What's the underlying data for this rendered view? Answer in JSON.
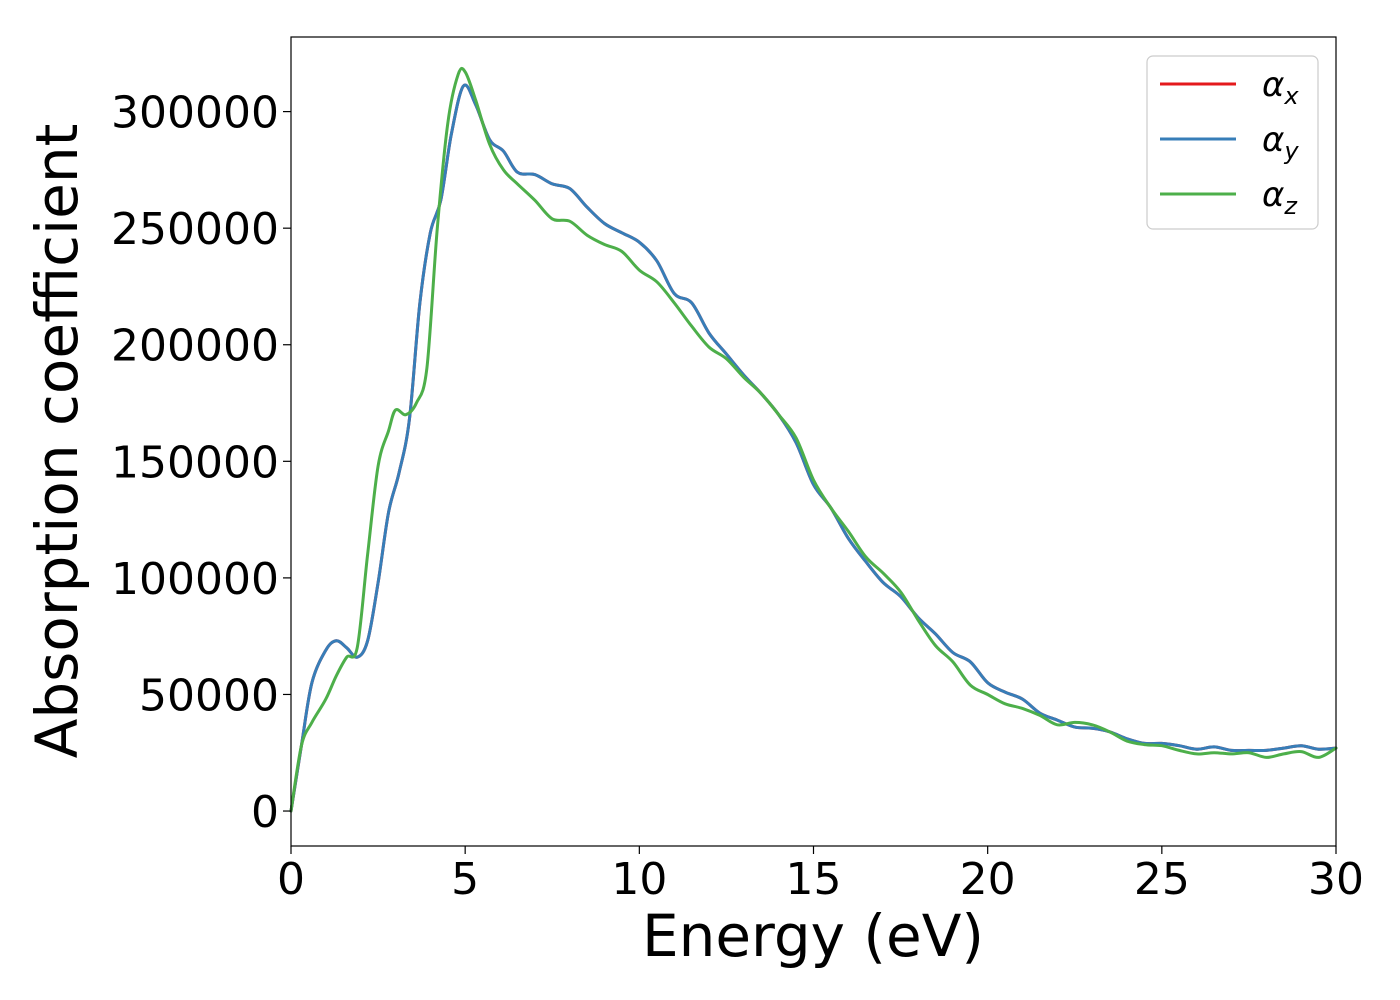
{
  "chart_data": {
    "type": "line",
    "xlabel": "Energy (eV)",
    "ylabel": "Absorption coefficient",
    "xlim": [
      0,
      30
    ],
    "ylim": [
      -15000,
      332000
    ],
    "xticks": [
      0,
      5,
      10,
      15,
      20,
      25,
      30
    ],
    "xtick_labels": [
      "0",
      "5",
      "10",
      "15",
      "20",
      "25",
      "30"
    ],
    "yticks": [
      0,
      50000,
      100000,
      150000,
      200000,
      250000,
      300000
    ],
    "ytick_labels": [
      "0",
      "50000",
      "100000",
      "150000",
      "200000",
      "250000",
      "300000"
    ],
    "grid": false,
    "legend_position": "top-right",
    "series": [
      {
        "name": "αx",
        "symbol": "α",
        "subscript": "x",
        "color": "#e41a1c",
        "x": [
          0,
          0.3,
          0.6,
          1.0,
          1.3,
          1.6,
          1.9,
          2.2,
          2.5,
          2.8,
          3.1,
          3.4,
          3.7,
          4.0,
          4.3,
          4.6,
          4.95,
          5.3,
          5.7,
          6.1,
          6.5,
          7.0,
          7.5,
          8.0,
          8.5,
          9.0,
          9.5,
          10.0,
          10.5,
          11.0,
          11.5,
          12.0,
          12.5,
          13.0,
          13.5,
          14.0,
          14.5,
          15.0,
          15.5,
          16.0,
          16.5,
          17.0,
          17.5,
          18.0,
          18.5,
          19.0,
          19.5,
          20.0,
          20.5,
          21.0,
          21.5,
          22.0,
          22.5,
          23.0,
          23.5,
          24.0,
          24.5,
          25.0,
          25.5,
          26.0,
          26.5,
          27.0,
          27.5,
          28.0,
          28.5,
          29.0,
          29.5,
          30.0
        ],
        "y": [
          0,
          28000,
          55000,
          69000,
          73000,
          70000,
          66000,
          73000,
          98000,
          128000,
          145000,
          168000,
          218000,
          248000,
          262000,
          290000,
          311000,
          303000,
          288000,
          283000,
          274000,
          273000,
          269000,
          267000,
          259000,
          252000,
          248000,
          244000,
          236000,
          222000,
          218000,
          205000,
          196000,
          187000,
          179000,
          170000,
          158000,
          140000,
          130000,
          117000,
          107000,
          98000,
          92000,
          83000,
          76000,
          68000,
          64000,
          55000,
          51000,
          48000,
          42000,
          39000,
          36000,
          35500,
          34000,
          31000,
          29000,
          29000,
          28000,
          26500,
          27500,
          26000,
          26000,
          26000,
          27000,
          28000,
          26500,
          27000
        ]
      },
      {
        "name": "αy",
        "symbol": "α",
        "subscript": "y",
        "color": "#377eb8",
        "x": [
          0,
          0.3,
          0.6,
          1.0,
          1.3,
          1.6,
          1.9,
          2.2,
          2.5,
          2.8,
          3.1,
          3.4,
          3.7,
          4.0,
          4.3,
          4.6,
          4.95,
          5.3,
          5.7,
          6.1,
          6.5,
          7.0,
          7.5,
          8.0,
          8.5,
          9.0,
          9.5,
          10.0,
          10.5,
          11.0,
          11.5,
          12.0,
          12.5,
          13.0,
          13.5,
          14.0,
          14.5,
          15.0,
          15.5,
          16.0,
          16.5,
          17.0,
          17.5,
          18.0,
          18.5,
          19.0,
          19.5,
          20.0,
          20.5,
          21.0,
          21.5,
          22.0,
          22.5,
          23.0,
          23.5,
          24.0,
          24.5,
          25.0,
          25.5,
          26.0,
          26.5,
          27.0,
          27.5,
          28.0,
          28.5,
          29.0,
          29.5,
          30.0
        ],
        "y": [
          0,
          28000,
          55000,
          69000,
          73000,
          70000,
          66000,
          73000,
          98000,
          128000,
          145000,
          168000,
          218000,
          248000,
          262000,
          290000,
          311000,
          303000,
          288000,
          283000,
          274000,
          273000,
          269000,
          267000,
          259000,
          252000,
          248000,
          244000,
          236000,
          222000,
          218000,
          205000,
          196000,
          187000,
          179000,
          170000,
          158000,
          140000,
          130000,
          117000,
          107000,
          98000,
          92000,
          83000,
          76000,
          68000,
          64000,
          55000,
          51000,
          48000,
          42000,
          39000,
          36000,
          35500,
          34000,
          31000,
          29000,
          29000,
          28000,
          26500,
          27500,
          26000,
          26000,
          26000,
          27000,
          28000,
          26500,
          27000
        ]
      },
      {
        "name": "αz",
        "symbol": "α",
        "subscript": "z",
        "color": "#4daf4a",
        "x": [
          0,
          0.3,
          0.6,
          1.0,
          1.3,
          1.6,
          1.9,
          2.2,
          2.5,
          2.8,
          3.0,
          3.3,
          3.6,
          3.9,
          4.2,
          4.5,
          4.8,
          5.0,
          5.3,
          5.7,
          6.1,
          6.5,
          7.0,
          7.5,
          8.0,
          8.5,
          9.0,
          9.5,
          10.0,
          10.5,
          11.0,
          11.5,
          12.0,
          12.5,
          13.0,
          13.5,
          14.0,
          14.5,
          15.0,
          15.5,
          16.0,
          16.5,
          17.0,
          17.5,
          18.0,
          18.5,
          19.0,
          19.5,
          20.0,
          20.5,
          21.0,
          21.5,
          22.0,
          22.5,
          23.0,
          23.5,
          24.0,
          24.5,
          25.0,
          25.5,
          26.0,
          26.5,
          27.0,
          27.5,
          28.0,
          28.5,
          29.0,
          29.5,
          30.0
        ],
        "y": [
          0,
          28000,
          38000,
          48000,
          58000,
          66000,
          70000,
          110000,
          148000,
          163000,
          172000,
          170000,
          175000,
          190000,
          250000,
          295000,
          316000,
          317000,
          305000,
          286000,
          275000,
          269000,
          262000,
          254000,
          253000,
          247000,
          243000,
          240000,
          232000,
          227000,
          218000,
          208000,
          199000,
          194000,
          186000,
          179000,
          170000,
          160000,
          142000,
          130000,
          120000,
          109000,
          102000,
          94000,
          82000,
          71000,
          64000,
          54000,
          50000,
          46000,
          44000,
          41000,
          37000,
          38000,
          37000,
          34000,
          30000,
          28500,
          28000,
          26000,
          24500,
          25000,
          24500,
          25000,
          23000,
          24500,
          25500,
          23000,
          27000
        ]
      }
    ]
  }
}
